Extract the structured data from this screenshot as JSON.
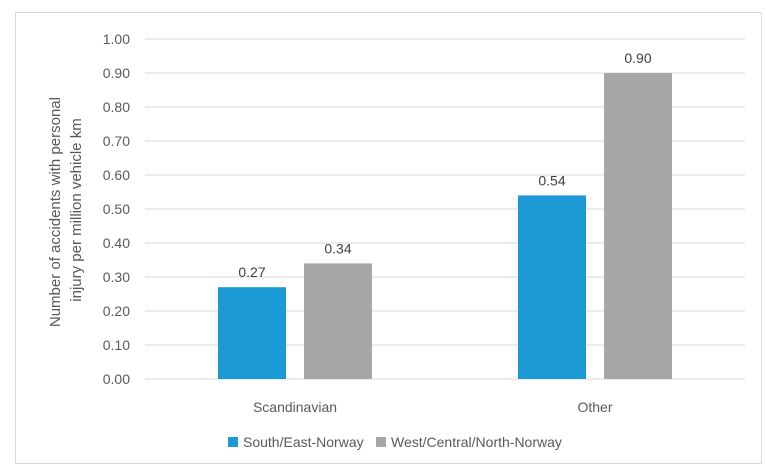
{
  "chart_data": {
    "type": "bar",
    "title": "",
    "xlabel": "",
    "ylabel": [
      "Number of accidents with personal",
      "injury per million vehicle km"
    ],
    "categories": [
      "Scandinavian",
      "Other"
    ],
    "series": [
      {
        "name": "South/East-Norway",
        "values": [
          0.27,
          0.54
        ],
        "labels": [
          "0.27",
          "0.54"
        ],
        "color": "#1b9ad6"
      },
      {
        "name": "West/Central/North-Norway",
        "values": [
          0.34,
          0.9
        ],
        "labels": [
          "0.34",
          "0.90"
        ],
        "color": "#a6a6a6"
      }
    ],
    "ylim": [
      0,
      1
    ],
    "yticks": [
      0.0,
      0.1,
      0.2,
      0.3,
      0.4,
      0.5,
      0.6,
      0.7,
      0.8,
      0.9,
      1.0
    ],
    "ytick_labels": [
      "0.00",
      "0.10",
      "0.20",
      "0.30",
      "0.40",
      "0.50",
      "0.60",
      "0.70",
      "0.80",
      "0.90",
      "1.00"
    ],
    "grid": true,
    "legend": "bottom",
    "gridline_color": "#d9d9d9"
  }
}
